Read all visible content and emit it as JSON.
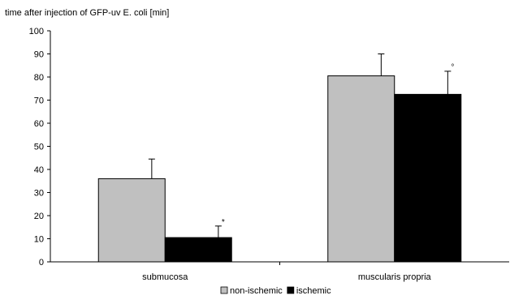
{
  "chart_data": {
    "type": "bar",
    "ylabel": "time after injection of GFP-uv E. coli [min]",
    "xlabel": "",
    "ylim": [
      0,
      100
    ],
    "yticks": [
      0,
      10,
      20,
      30,
      40,
      50,
      60,
      70,
      80,
      90,
      100
    ],
    "categories": [
      "submucosa",
      "muscularis propria"
    ],
    "series": [
      {
        "name": "non-ischemic",
        "values": [
          36,
          80.5
        ],
        "errors": [
          8.5,
          9.5
        ],
        "color": "#c0c0c0"
      },
      {
        "name": "ischemic",
        "values": [
          10.5,
          72.5
        ],
        "errors": [
          5,
          10
        ],
        "color": "#000000"
      }
    ],
    "annotations": [
      {
        "category": "submucosa",
        "series": "ischemic",
        "text": "*"
      },
      {
        "category": "muscularis propria",
        "series": "ischemic",
        "text": "°"
      }
    ],
    "grid": false,
    "legend_position": "bottom-center"
  }
}
